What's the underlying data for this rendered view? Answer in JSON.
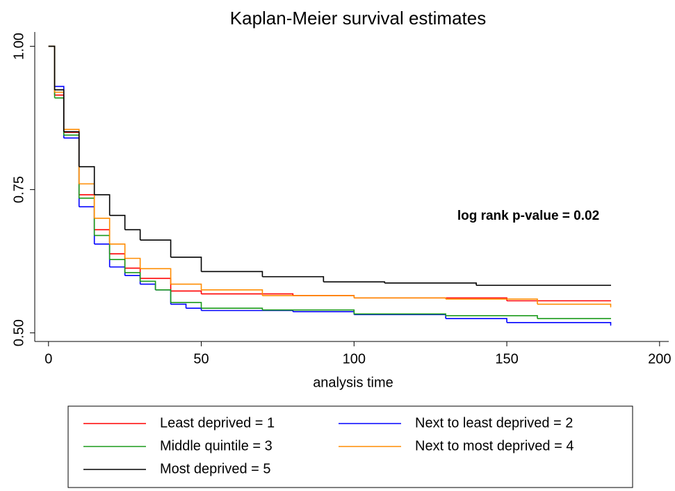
{
  "chart_data": {
    "type": "step",
    "title": "Kaplan-Meier survival estimates",
    "xlabel": "analysis time",
    "annotation": "log rank p-value = 0.02",
    "xlim": [
      -4.5,
      203
    ],
    "xticks": [
      0,
      50,
      100,
      150,
      200
    ],
    "ylim": [
      0.485,
      1.025
    ],
    "yticks": [
      {
        "value": 0.5,
        "label": "0.50"
      },
      {
        "value": 0.75,
        "label": "0.75"
      },
      {
        "value": 1,
        "label": "1.00"
      }
    ],
    "series": [
      {
        "name": "Least deprived = 1",
        "color": "#ff0000",
        "x": [
          0,
          2,
          5,
          10,
          15,
          20,
          25,
          30,
          40,
          50,
          80,
          100,
          150,
          184
        ],
        "values": [
          1,
          0.915,
          0.85,
          0.741,
          0.68,
          0.638,
          0.613,
          0.595,
          0.573,
          0.568,
          0.565,
          0.561,
          0.556,
          0.556
        ]
      },
      {
        "name": "Next to least deprived = 2",
        "color": "#0000ff",
        "x": [
          0,
          2,
          5,
          10,
          15,
          20,
          25,
          30,
          35,
          40,
          45,
          50,
          80,
          100,
          130,
          150,
          184
        ],
        "values": [
          1,
          0.93,
          0.84,
          0.72,
          0.655,
          0.615,
          0.6,
          0.585,
          0.575,
          0.55,
          0.543,
          0.539,
          0.537,
          0.532,
          0.525,
          0.518,
          0.513
        ]
      },
      {
        "name": "Middle quintile = 3",
        "color": "#1a9a1a",
        "x": [
          0,
          2,
          5,
          10,
          15,
          20,
          25,
          30,
          35,
          40,
          50,
          70,
          100,
          130,
          160,
          184
        ],
        "values": [
          1,
          0.91,
          0.845,
          0.735,
          0.67,
          0.628,
          0.605,
          0.59,
          0.575,
          0.553,
          0.543,
          0.54,
          0.533,
          0.53,
          0.525,
          0.525
        ]
      },
      {
        "name": "Next to most deprived = 4",
        "color": "#ff8c00",
        "x": [
          0,
          2,
          5,
          10,
          15,
          20,
          25,
          30,
          40,
          50,
          70,
          100,
          130,
          160,
          184
        ],
        "values": [
          1,
          0.92,
          0.855,
          0.76,
          0.7,
          0.655,
          0.63,
          0.612,
          0.585,
          0.575,
          0.565,
          0.561,
          0.559,
          0.55,
          0.545
        ]
      },
      {
        "name": "Most deprived = 5",
        "color": "#000000",
        "x": [
          0,
          2,
          5,
          10,
          15,
          20,
          25,
          30,
          40,
          50,
          70,
          90,
          110,
          140,
          184
        ],
        "values": [
          1,
          0.924,
          0.851,
          0.79,
          0.741,
          0.705,
          0.68,
          0.662,
          0.632,
          0.607,
          0.598,
          0.589,
          0.587,
          0.583,
          0.583
        ]
      }
    ]
  }
}
